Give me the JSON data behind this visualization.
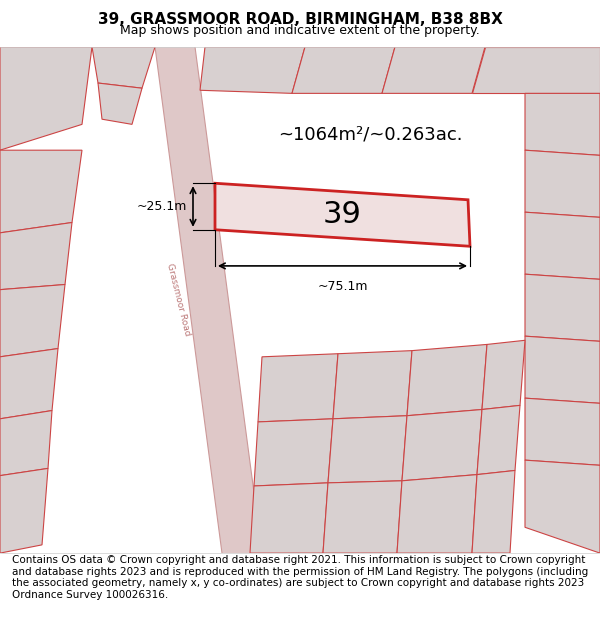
{
  "title_line1": "39, GRASSMOOR ROAD, BIRMINGHAM, B38 8BX",
  "title_line2": "Map shows position and indicative extent of the property.",
  "footer_text": "Contains OS data © Crown copyright and database right 2021. This information is subject to Crown copyright and database rights 2023 and is reproduced with the permission of HM Land Registry. The polygons (including the associated geometry, namely x, y co-ordinates) are subject to Crown copyright and database rights 2023 Ordnance Survey 100026316.",
  "area_label": "~1064m²/~0.263ac.",
  "property_number": "39",
  "dim_width": "~75.1m",
  "dim_height": "~25.1m",
  "map_bg": "#f5eded",
  "property_fill": "#f0e0e0",
  "property_edge": "#cc2222",
  "building_fill": "#d8d0d0",
  "building_edge": "#cc4444",
  "line_color": "#dd3333",
  "title_fontsize": 11,
  "subtitle_fontsize": 9,
  "footer_fontsize": 7.5,
  "label_fontsize": 13,
  "number_fontsize": 22
}
